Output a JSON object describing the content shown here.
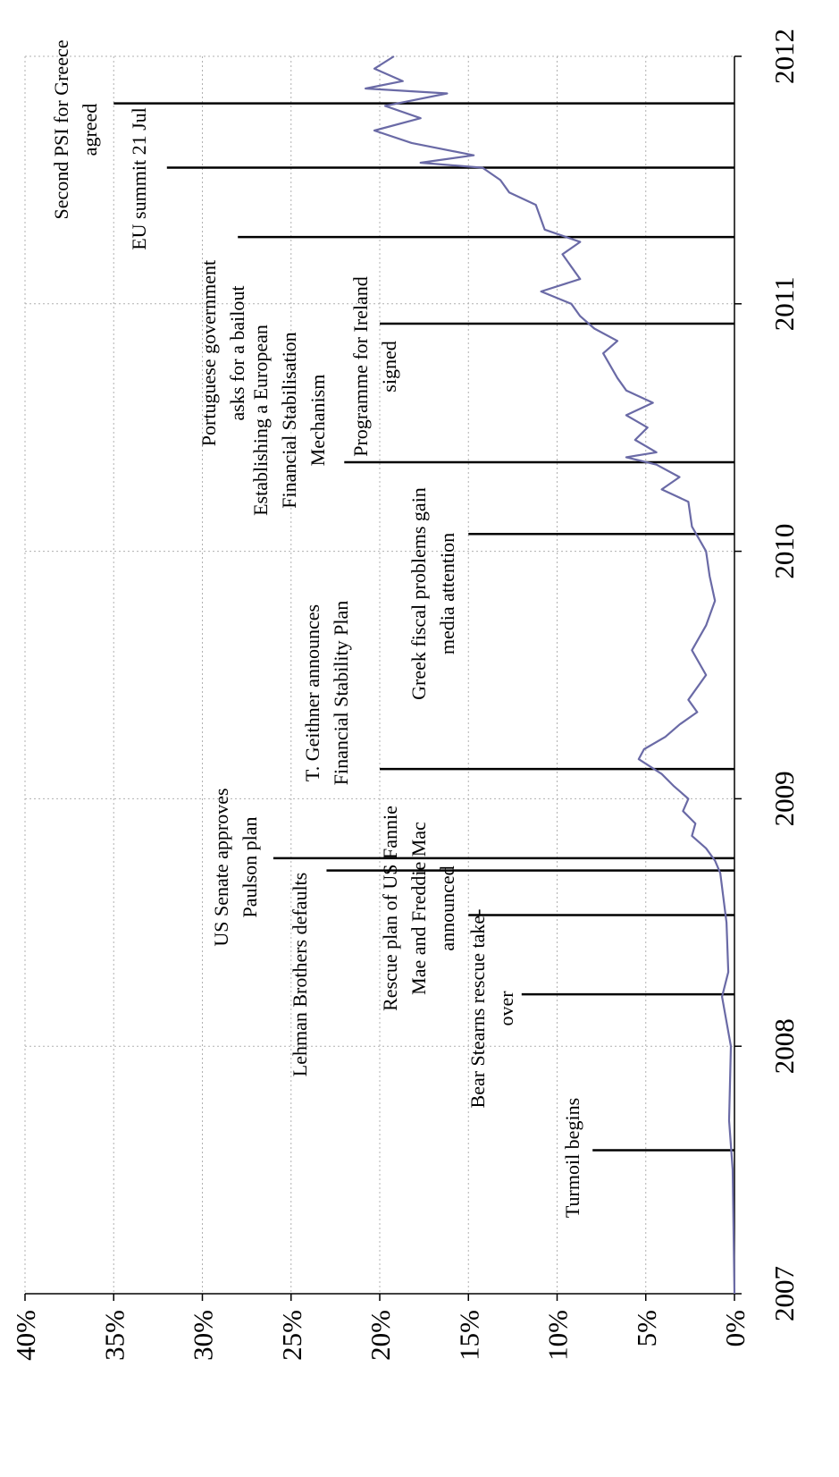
{
  "chart_data": {
    "type": "line",
    "x": [
      2007.0,
      2007.5,
      2007.7,
      2008.0,
      2008.2,
      2008.3,
      2008.5,
      2008.7,
      2008.75,
      2008.8,
      2008.85,
      2008.9,
      2008.95,
      2009.0,
      2009.05,
      2009.1,
      2009.16,
      2009.2,
      2009.25,
      2009.3,
      2009.35,
      2009.4,
      2009.5,
      2009.6,
      2009.7,
      2009.8,
      2009.9,
      2010.0,
      2010.1,
      2010.2,
      2010.25,
      2010.3,
      2010.35,
      2010.38,
      2010.4,
      2010.45,
      2010.5,
      2010.55,
      2010.6,
      2010.65,
      2010.7,
      2010.8,
      2010.85,
      2010.9,
      2010.95,
      2011.0,
      2011.05,
      2011.1,
      2011.15,
      2011.2,
      2011.25,
      2011.3,
      2011.4,
      2011.45,
      2011.5,
      2011.55,
      2011.57,
      2011.6,
      2011.65,
      2011.7,
      2011.75,
      2011.8,
      2011.85,
      2011.87,
      2011.9,
      2011.95,
      2012.0
    ],
    "series": [
      {
        "color": "#6a6aa6",
        "values": [
          0,
          0.1,
          0.3,
          0.2,
          0.7,
          0.35,
          0.45,
          0.8,
          1.1,
          1.6,
          2.4,
          2.2,
          2.9,
          2.6,
          3.4,
          4.1,
          5.4,
          5.1,
          3.9,
          3.1,
          2.1,
          2.6,
          1.6,
          2.4,
          1.6,
          1.1,
          1.4,
          1.6,
          2.4,
          2.6,
          4.1,
          3.1,
          4.4,
          6.1,
          4.4,
          5.6,
          4.9,
          6.1,
          4.6,
          6.1,
          6.6,
          7.4,
          6.6,
          7.9,
          8.7,
          9.2,
          10.9,
          8.7,
          9.2,
          9.7,
          8.7,
          10.7,
          11.2,
          12.7,
          13.2,
          14.2,
          17.7,
          14.7,
          18.2,
          20.3,
          17.7,
          19.7,
          16.2,
          20.8,
          18.7,
          20.3,
          19.2
        ]
      }
    ],
    "xlim": [
      2007,
      2012
    ],
    "xticks": [
      2007,
      2008,
      2009,
      2010,
      2011,
      2012
    ],
    "ylim": [
      0,
      40
    ],
    "yticks": [
      {
        "value": 0,
        "label": "0%"
      },
      {
        "value": 5,
        "label": "5%"
      },
      {
        "value": 10,
        "label": "10%"
      },
      {
        "value": 15,
        "label": "15%"
      },
      {
        "value": 20,
        "label": "20%"
      },
      {
        "value": 25,
        "label": "25%"
      },
      {
        "value": 30,
        "label": "30%"
      },
      {
        "value": 35,
        "label": "35%"
      },
      {
        "value": 40,
        "label": "40%"
      }
    ],
    "grid": true,
    "rotation": -90,
    "annotations": [
      {
        "x": 2007.58,
        "y": 8,
        "text": [
          "Turmoil  begins"
        ]
      },
      {
        "x": 2008.21,
        "y": 12,
        "text": [
          "Bear Stearns rescue take-",
          "over"
        ]
      },
      {
        "x": 2008.53,
        "y": 15,
        "text": [
          "Rescue plan of US Fannie",
          "Mae and Freddie Mac",
          "announced"
        ]
      },
      {
        "x": 2008.71,
        "y": 23,
        "text": [
          "Lehman  Brothers  defaults"
        ]
      },
      {
        "x": 2008.76,
        "y": 26,
        "text": [
          "US Senate  approves",
          "Paulson  plan"
        ]
      },
      {
        "x": 2009.12,
        "y": 20,
        "text": [
          "T. Geithner  announces",
          "Financial  Stability  Plan"
        ]
      },
      {
        "x": 2010.07,
        "y": 15,
        "text": [
          "Greek fiscal  problems  gain",
          "media  attention"
        ]
      },
      {
        "x": 2010.36,
        "y": 22,
        "text": [
          "Establishing  a European",
          "Financial  Stabilisation",
          "Mechanism"
        ]
      },
      {
        "x": 2010.92,
        "y": 20,
        "text": [
          "Programme  for Ireland",
          "signed"
        ]
      },
      {
        "x": 2011.27,
        "y": 28,
        "text": [
          "Portuguese  government",
          "asks for a bailout"
        ]
      },
      {
        "x": 2011.55,
        "y": 32,
        "text": [
          "EU summit  21 Jul"
        ]
      },
      {
        "x": 2011.81,
        "y": 35,
        "text": [
          "Second PSI for Greece",
          "agreed"
        ]
      }
    ]
  }
}
